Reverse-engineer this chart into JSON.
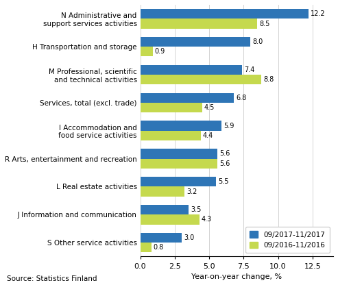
{
  "categories": [
    "N Administrative and\nsupport services activities",
    "H Transportation and storage",
    "M Professional, scientific\nand technical activities",
    "Services, total (excl. trade)",
    "I Accommodation and\nfood service activities",
    "R Arts, entertainment and recreation",
    "L Real estate activities",
    "J Information and communication",
    "S Other service activities"
  ],
  "series1_label": "09/2017-11/2017",
  "series2_label": "09/2016-11/2016",
  "series1_values": [
    12.2,
    8.0,
    7.4,
    6.8,
    5.9,
    5.6,
    5.5,
    3.5,
    3.0
  ],
  "series2_values": [
    8.5,
    0.9,
    8.8,
    4.5,
    4.4,
    5.6,
    3.2,
    4.3,
    0.8
  ],
  "series1_color": "#2E75B6",
  "series2_color": "#C5D94E",
  "xlabel": "Year-on-year change, %",
  "xlim": [
    0,
    14
  ],
  "xticks": [
    0.0,
    2.5,
    5.0,
    7.5,
    10.0,
    12.5
  ],
  "xtick_labels": [
    "0.0",
    "2.5",
    "5.0",
    "7.5",
    "10.0",
    "12.5"
  ],
  "source_text": "Source: Statistics Finland",
  "bar_height": 0.35,
  "value_fontsize": 7.0,
  "label_fontsize": 7.5,
  "axis_fontsize": 8.0,
  "legend_fontsize": 7.5
}
